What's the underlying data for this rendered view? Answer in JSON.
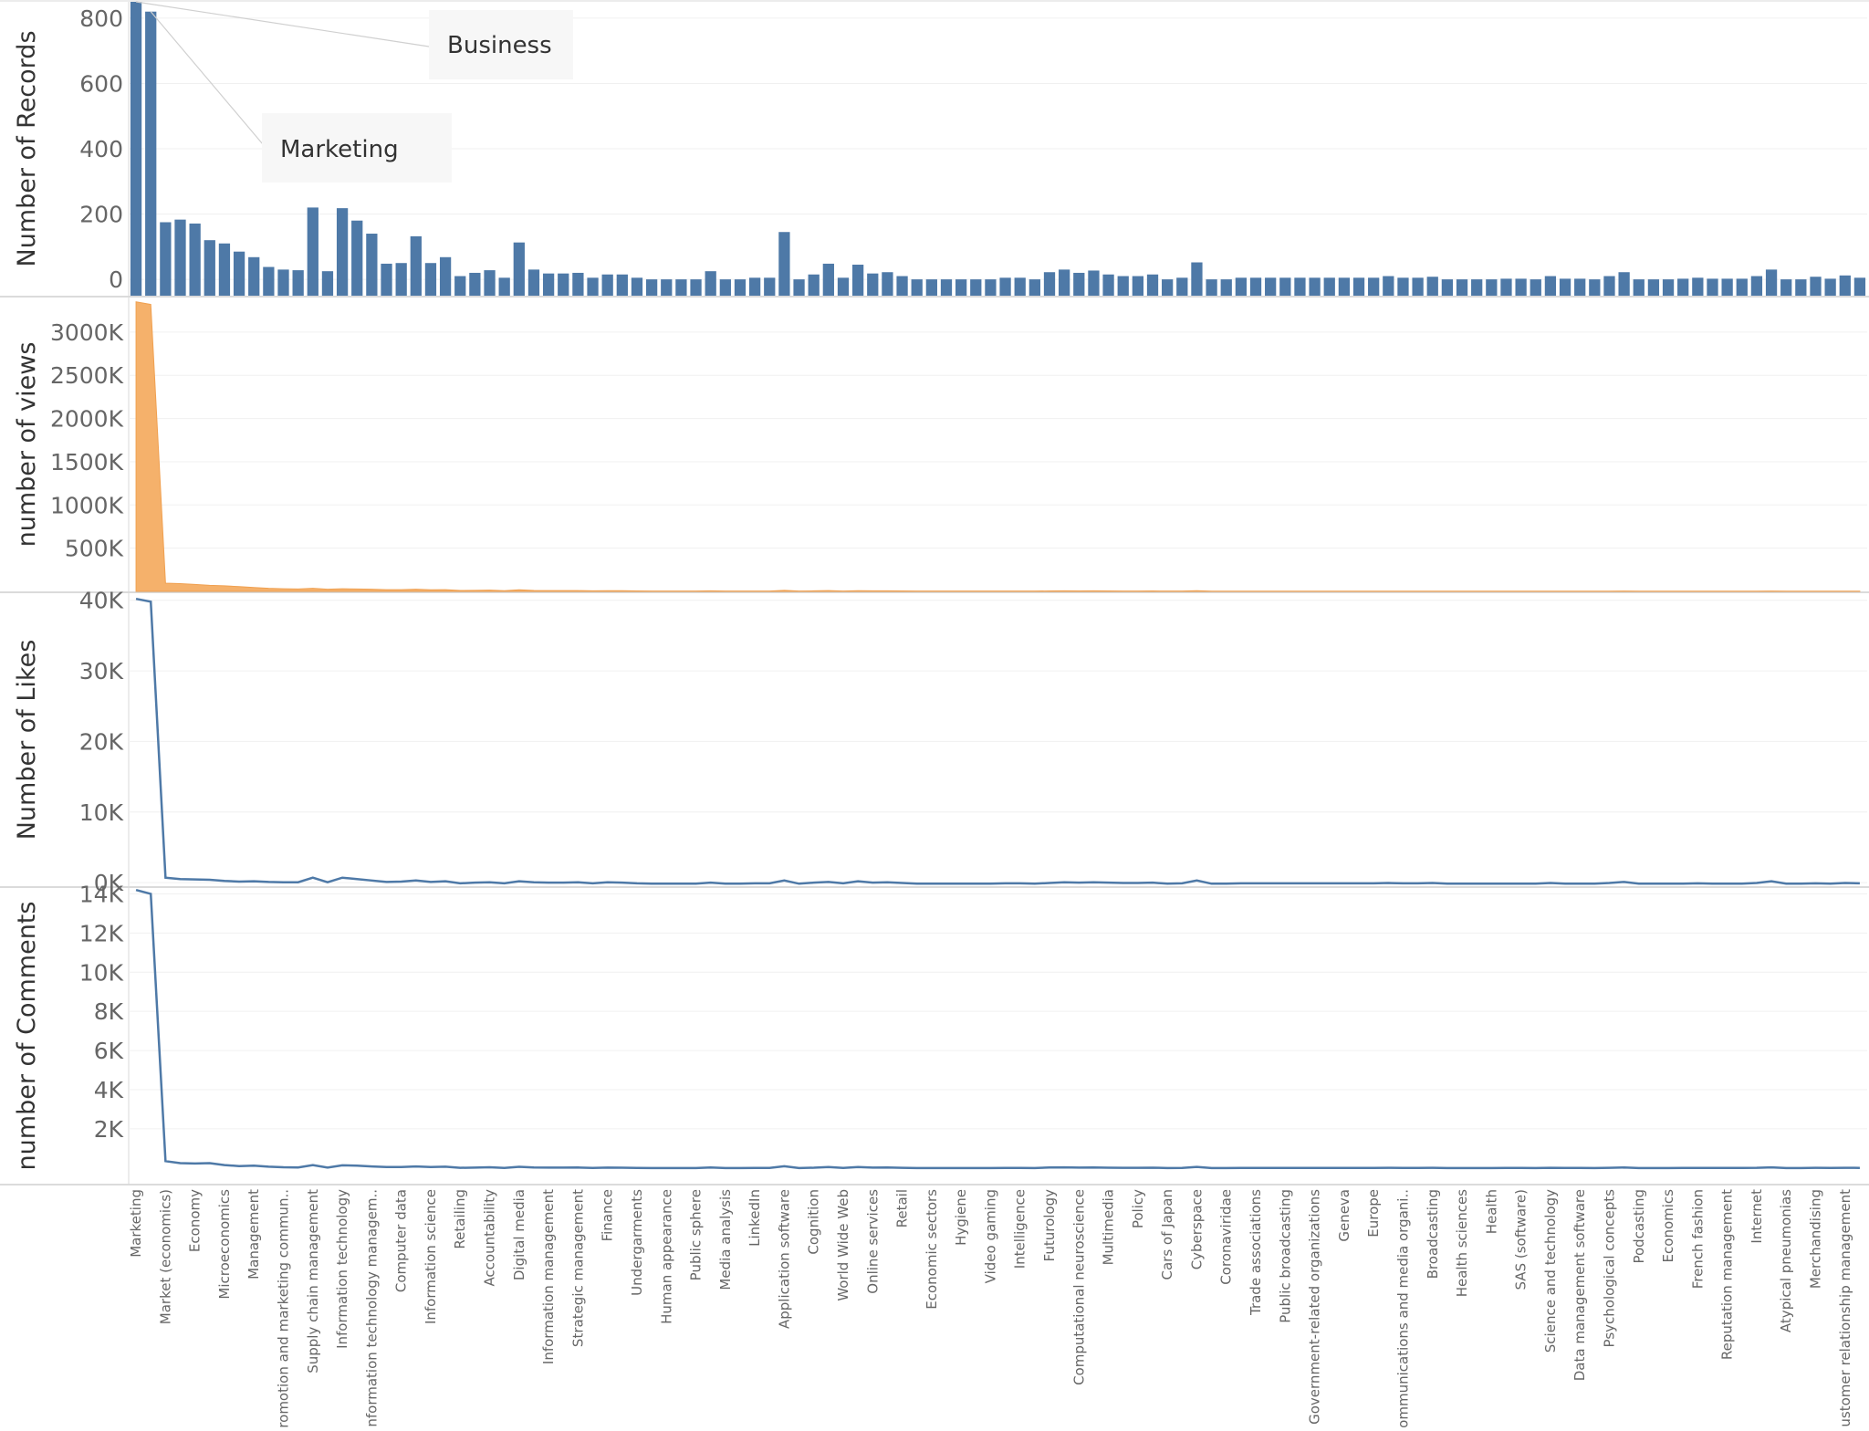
{
  "chart_data": [
    {
      "type": "bar",
      "ylabel": "Number of Records",
      "yticks": [
        "0",
        "200",
        "400",
        "600",
        "800"
      ],
      "ytick_values": [
        0,
        200,
        400,
        600,
        800
      ],
      "ylim": [
        -50,
        850
      ],
      "color": "#4e79a7",
      "values": [
        850,
        820,
        175,
        183,
        171,
        120,
        110,
        85,
        68,
        38,
        30,
        28,
        220,
        25,
        218,
        180,
        140,
        48,
        50,
        132,
        50,
        68,
        10,
        20,
        28,
        5,
        113,
        30,
        18,
        18,
        20,
        5,
        15,
        15,
        5,
        0,
        0,
        0,
        0,
        25,
        0,
        0,
        5,
        5,
        145,
        0,
        15,
        48,
        5,
        45,
        18,
        22,
        10,
        0,
        0,
        0,
        0,
        0,
        0,
        5,
        5,
        0,
        22,
        30,
        20,
        27,
        15,
        10,
        10,
        15,
        0,
        5,
        52,
        0,
        0,
        5,
        5,
        5,
        5,
        5,
        5,
        5,
        5,
        5,
        5,
        10,
        5,
        5,
        8,
        0,
        0,
        0,
        0,
        2,
        2,
        0,
        10,
        2,
        2,
        0,
        10,
        22,
        0,
        0,
        0,
        2,
        5,
        2,
        2,
        2,
        10,
        30,
        0,
        0,
        8,
        2,
        12,
        5
      ],
      "annotations": [
        {
          "text": "Business",
          "point_index": 0
        },
        {
          "text": "Marketing",
          "point_index": 1
        }
      ]
    },
    {
      "type": "area",
      "ylabel": "number of views",
      "yticks": [
        "500K",
        "1000K",
        "1500K",
        "2000K",
        "2500K",
        "3000K"
      ],
      "ytick_values": [
        500000,
        1000000,
        1500000,
        2000000,
        2500000,
        3000000
      ],
      "ylim": [
        0,
        3400000
      ],
      "color": "#f5b16b",
      "values": [
        3350000,
        3320000,
        95000,
        90000,
        80000,
        70000,
        65000,
        55000,
        45000,
        35000,
        30000,
        28000,
        35000,
        25000,
        30000,
        28000,
        25000,
        20000,
        20000,
        25000,
        18000,
        20000,
        10000,
        12000,
        15000,
        8000,
        18000,
        10000,
        9000,
        9000,
        9000,
        6000,
        8000,
        8000,
        5000,
        4000,
        4000,
        4000,
        4000,
        7000,
        4000,
        4000,
        4000,
        4000,
        12000,
        4000,
        6000,
        9000,
        4000,
        8000,
        6000,
        6000,
        5000,
        4000,
        4000,
        4000,
        4000,
        4000,
        4000,
        4000,
        4000,
        4000,
        5000,
        6000,
        5000,
        6000,
        5000,
        4000,
        4000,
        5000,
        4000,
        4000,
        8000,
        3000,
        3000,
        3000,
        3000,
        3000,
        3000,
        3000,
        3000,
        3000,
        3000,
        3000,
        3000,
        3000,
        3000,
        3000,
        3000,
        3000,
        3000,
        3000,
        3000,
        3000,
        3000,
        3000,
        3000,
        3000,
        3000,
        3000,
        3000,
        4000,
        3000,
        3000,
        3000,
        3000,
        3000,
        3000,
        3000,
        3000,
        3000,
        4000,
        3000,
        3000,
        3000,
        3000,
        3000,
        3000
      ]
    },
    {
      "type": "line",
      "ylabel": "Number of Likes",
      "yticks": [
        "0K",
        "10K",
        "20K",
        "30K",
        "40K"
      ],
      "ytick_values": [
        0,
        10000,
        20000,
        30000,
        40000
      ],
      "ylim": [
        -500,
        41000
      ],
      "color": "#4e79a7",
      "values": [
        40200,
        39800,
        700,
        500,
        450,
        400,
        250,
        150,
        200,
        100,
        50,
        50,
        700,
        50,
        700,
        500,
        300,
        100,
        150,
        300,
        100,
        200,
        -100,
        0,
        50,
        -100,
        200,
        50,
        0,
        0,
        50,
        -100,
        50,
        0,
        -100,
        -150,
        -150,
        -150,
        -150,
        0,
        -150,
        -150,
        -100,
        -100,
        300,
        -150,
        0,
        100,
        -100,
        200,
        0,
        50,
        -50,
        -150,
        -150,
        -150,
        -150,
        -150,
        -150,
        -100,
        -100,
        -150,
        -50,
        50,
        0,
        50,
        0,
        -50,
        -50,
        0,
        -150,
        -100,
        300,
        -150,
        -150,
        -100,
        -100,
        -100,
        -100,
        -100,
        -100,
        -100,
        -100,
        -100,
        -100,
        -50,
        -100,
        -100,
        -50,
        -150,
        -150,
        -150,
        -150,
        -150,
        -150,
        -150,
        -50,
        -150,
        -150,
        -150,
        -50,
        100,
        -150,
        -150,
        -150,
        -150,
        -100,
        -150,
        -150,
        -150,
        -50,
        200,
        -150,
        -150,
        -100,
        -150,
        -50,
        -100
      ]
    },
    {
      "type": "line",
      "ylabel": "number of Comments",
      "yticks": [
        "2K",
        "4K",
        "6K",
        "8K",
        "10K",
        "12K",
        "14K"
      ],
      "ytick_values": [
        2000,
        4000,
        6000,
        8000,
        10000,
        12000,
        14000
      ],
      "ylim": [
        -800,
        14300
      ],
      "color": "#4e79a7",
      "values": [
        14200,
        14000,
        350,
        250,
        230,
        250,
        150,
        100,
        120,
        70,
        40,
        30,
        150,
        20,
        140,
        120,
        80,
        50,
        50,
        80,
        50,
        70,
        10,
        20,
        40,
        5,
        60,
        30,
        20,
        20,
        25,
        5,
        20,
        15,
        5,
        0,
        0,
        0,
        0,
        25,
        0,
        0,
        5,
        5,
        90,
        0,
        15,
        50,
        5,
        50,
        20,
        25,
        10,
        0,
        0,
        0,
        0,
        0,
        0,
        5,
        5,
        0,
        25,
        35,
        20,
        30,
        15,
        10,
        10,
        15,
        0,
        5,
        55,
        0,
        0,
        5,
        5,
        5,
        5,
        5,
        5,
        5,
        5,
        5,
        5,
        10,
        5,
        5,
        8,
        0,
        0,
        0,
        0,
        2,
        2,
        0,
        10,
        2,
        2,
        0,
        10,
        25,
        0,
        0,
        0,
        2,
        5,
        2,
        2,
        2,
        10,
        35,
        0,
        0,
        8,
        2,
        12,
        5
      ]
    }
  ],
  "category_labels": [
    "Marketing",
    "Market (economics)",
    "Economy",
    "Microeconomics",
    "Management",
    "Promotion and marketing commun..",
    "Supply chain management",
    "Information technology",
    "Information technology managem..",
    "Computer data",
    "Information science",
    "Retailing",
    "Accountability",
    "Digital media",
    "Information management",
    "Strategic management",
    "Finance",
    "Undergarments",
    "Human appearance",
    "Public sphere",
    "Media analysis",
    "LinkedIn",
    "Application software",
    "Cognition",
    "World Wide Web",
    "Online services",
    "Retail",
    "Economic sectors",
    "Hygiene",
    "Video gaming",
    "Intelligence",
    "Futurology",
    "Computational neuroscience",
    "Multimedia",
    "Policy",
    "Cars of Japan",
    "Cyberspace",
    "Coronaviridae",
    "Trade associations",
    "Public broadcasting",
    "Government-related organizations",
    "Geneva",
    "Europe",
    "Communications and media organi..",
    "Broadcasting",
    "Health sciences",
    "Health",
    "SAS (software)",
    "Science and technology",
    "Data management software",
    "Psychological concepts",
    "Podcasting",
    "Economics",
    "French fashion",
    "Reputation management",
    "Internet",
    "Atypical pneumonias",
    "Merchandising",
    "Customer relationship management"
  ]
}
